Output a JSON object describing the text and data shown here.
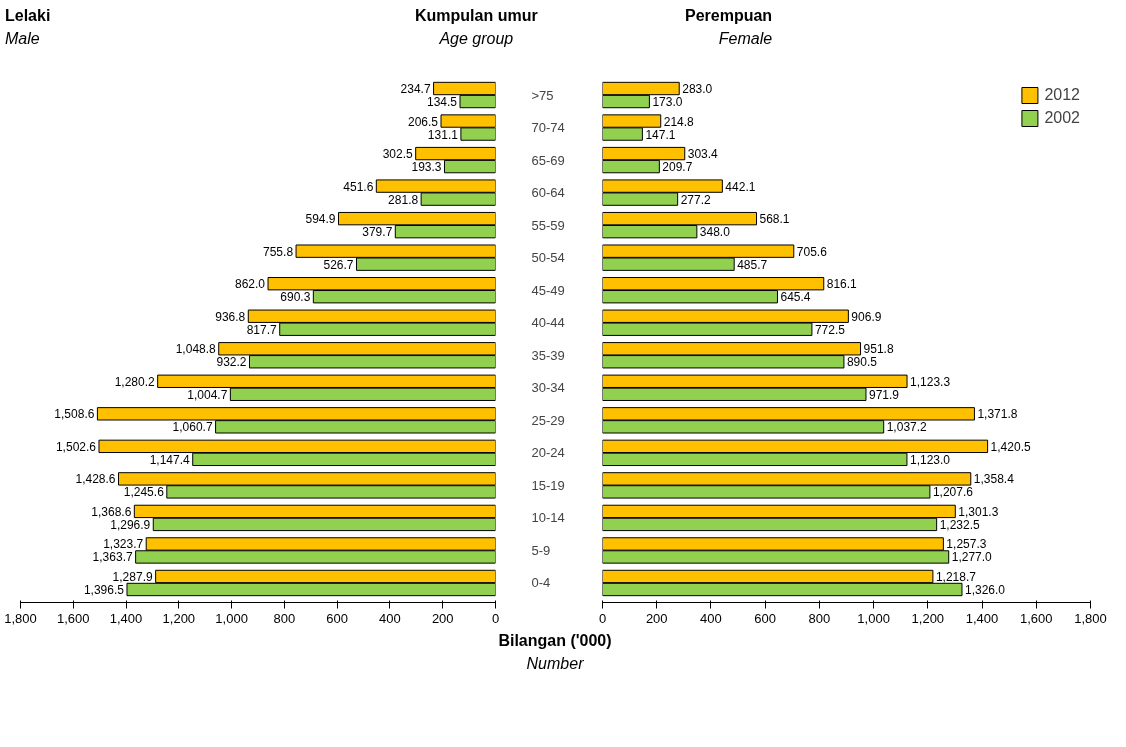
{
  "chart_data": [
    {
      "type": "bar",
      "orientation": "horizontal",
      "title": "Lelaki",
      "subtitle": "Male",
      "ylabel": "Kumpulan umur\nAge group",
      "xlabel": "Bilangan ('000)\nNumber",
      "categories": [
        ">75",
        "70-74",
        "65-69",
        "60-64",
        "55-59",
        "50-54",
        "45-49",
        "40-44",
        "35-39",
        "30-34",
        "25-29",
        "20-24",
        "15-19",
        "10-14",
        "5-9",
        "0-4"
      ],
      "xlim": [
        1800,
        0
      ],
      "xticks": [
        {
          "value": 1800,
          "label": "1,800"
        },
        {
          "value": 1600,
          "label": "1,600"
        },
        {
          "value": 1400,
          "label": "1,400"
        },
        {
          "value": 1200,
          "label": "1,200"
        },
        {
          "value": 1000,
          "label": "1,000"
        },
        800,
        600,
        400,
        200,
        0
      ],
      "grid": false,
      "legend": false,
      "series": [
        {
          "color": "#ffc000",
          "values": [
            234.7,
            206.5,
            302.5,
            451.6,
            594.9,
            755.8,
            862.0,
            936.8,
            1048.8,
            1280.2,
            1508.6,
            1502.6,
            1428.6,
            1368.6,
            1323.7,
            1287.9
          ],
          "value_labels": [
            "234.7",
            "206.5",
            "302.5",
            "451.6",
            "594.9",
            "755.8",
            "862.0",
            "936.8",
            "1,048.8",
            "1,280.2",
            "1,508.6",
            "1,502.6",
            "1,428.6",
            "1,368.6",
            "1,323.7",
            "1,287.9"
          ]
        },
        {
          "color": "#92d050",
          "values": [
            134.5,
            131.1,
            193.3,
            281.8,
            379.7,
            526.7,
            690.3,
            817.7,
            932.2,
            1004.7,
            1060.7,
            1147.4,
            1245.6,
            1296.9,
            1363.7,
            1396.5
          ],
          "value_labels": [
            "134.5",
            "131.1",
            "193.3",
            "281.8",
            "379.7",
            "526.7",
            "690.3",
            "817.7",
            "932.2",
            "1,004.7",
            "1,060.7",
            "1,147.4",
            "1,245.6",
            "1,296.9",
            "1,363.7",
            "1,396.5"
          ]
        }
      ]
    },
    {
      "type": "bar",
      "orientation": "horizontal",
      "title": "Perempuan",
      "subtitle": "Female",
      "categories": [
        null,
        null,
        null,
        null,
        null,
        null,
        null,
        null,
        null,
        null,
        null,
        null,
        null,
        null,
        null,
        null
      ],
      "xlim": [
        0,
        1800
      ],
      "xticks": [
        0,
        200,
        400,
        600,
        800,
        {
          "value": 1000,
          "label": "1,000"
        },
        {
          "value": 1200,
          "label": "1,200"
        },
        {
          "value": 1400,
          "label": "1,400"
        },
        {
          "value": 1600,
          "label": "1,600"
        },
        {
          "value": 1800,
          "label": "1,800"
        }
      ],
      "tick_labels": "x",
      "grid": false,
      "legend": "top right",
      "series": [
        {
          "name": "2012",
          "color": "#ffc000",
          "values": [
            283.0,
            214.8,
            303.4,
            442.1,
            568.1,
            705.6,
            816.1,
            906.9,
            951.8,
            1123.3,
            1371.8,
            1420.5,
            1358.4,
            1301.3,
            1257.3,
            1218.7
          ],
          "value_labels": [
            "283.0",
            "214.8",
            "303.4",
            "442.1",
            "568.1",
            "705.6",
            "816.1",
            "906.9",
            "951.8",
            "1,123.3",
            "1,371.8",
            "1,420.5",
            "1,358.4",
            "1,301.3",
            "1,257.3",
            "1,218.7"
          ]
        },
        {
          "name": "2002",
          "color": "#92d050",
          "values": [
            173.0,
            147.1,
            209.7,
            277.2,
            348.0,
            485.7,
            645.4,
            772.5,
            890.5,
            971.9,
            1037.2,
            1123.0,
            1207.6,
            1232.5,
            1277.0,
            1326.0
          ],
          "value_labels": [
            "173.0",
            "147.1",
            "209.7",
            "277.2",
            "348.0",
            "485.7",
            "645.4",
            "772.5",
            "890.5",
            "971.9",
            "1,037.2",
            "1,123.0",
            "1,207.6",
            "1,232.5",
            "1,277.0",
            "1,326.0"
          ]
        }
      ]
    }
  ]
}
